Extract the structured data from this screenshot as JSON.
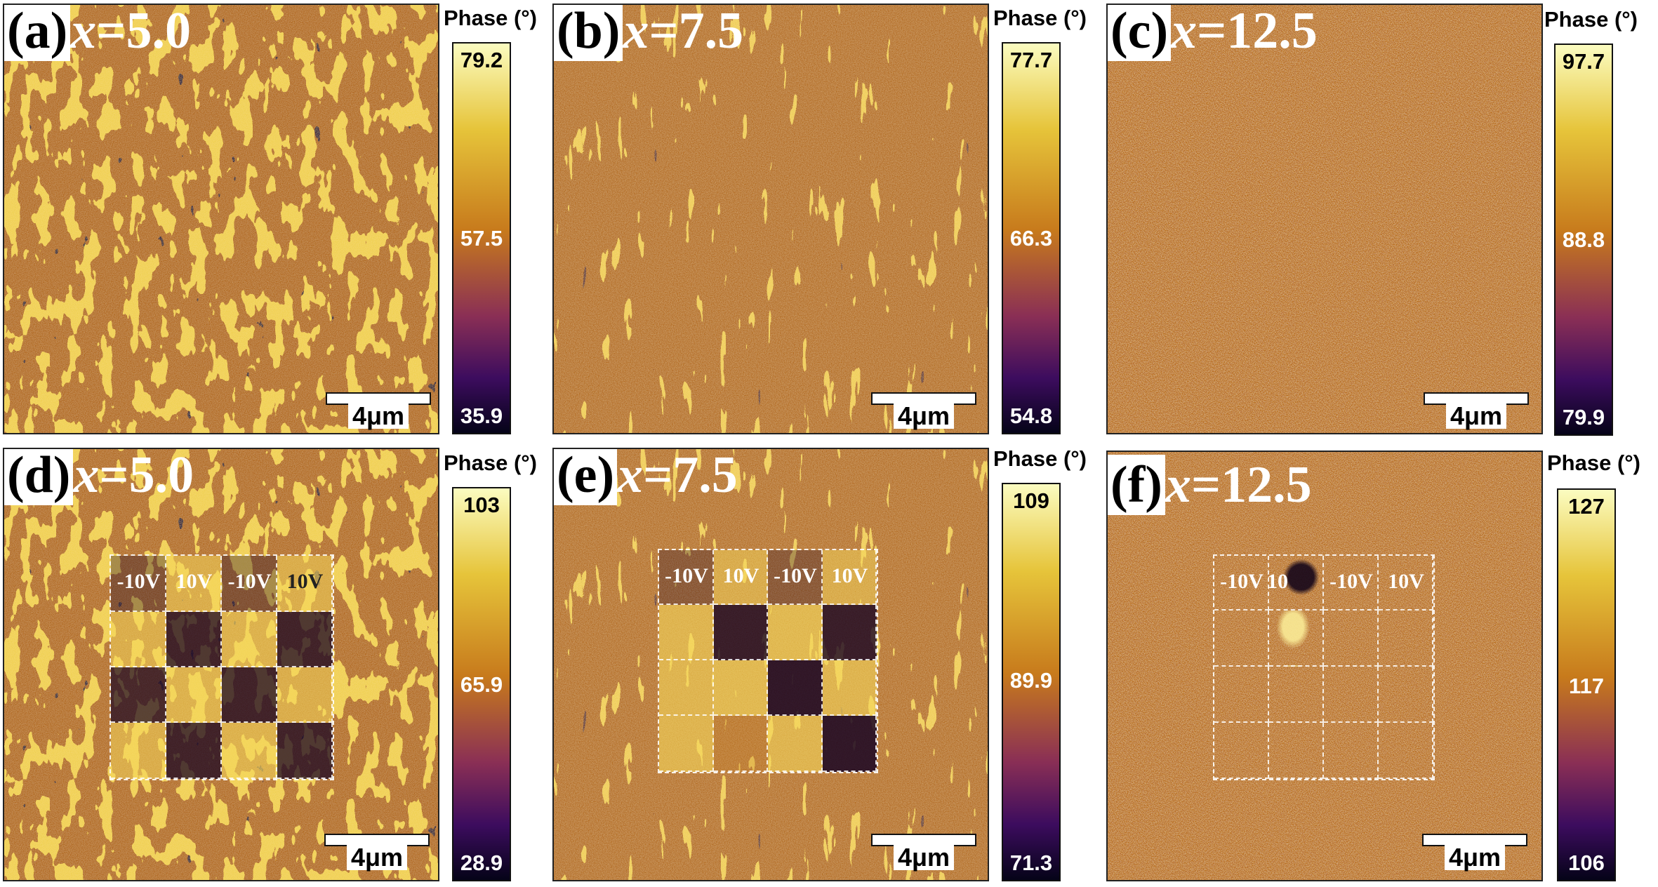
{
  "colorbar_title": "Phase (°)",
  "panels": [
    {
      "letter": "(a)",
      "xvar": "x",
      "value": "=5.0",
      "scale": "4μm",
      "cb_max": "79.2",
      "cb_mid": "57.5",
      "cb_min": "35.9",
      "voltages": []
    },
    {
      "letter": "(b)",
      "xvar": "x",
      "value": "=7.5",
      "scale": "4μm",
      "cb_max": "77.7",
      "cb_mid": "66.3",
      "cb_min": "54.8",
      "voltages": []
    },
    {
      "letter": "(c)",
      "xvar": "x",
      "value": "=12.5",
      "scale": "4μm",
      "cb_max": "97.7",
      "cb_mid": "88.8",
      "cb_min": "79.9",
      "voltages": []
    },
    {
      "letter": "(d)",
      "xvar": "x",
      "value": "=5.0",
      "scale": "4μm",
      "cb_max": "103",
      "cb_mid": "65.9",
      "cb_min": "28.9",
      "voltages": [
        "-10V",
        "10V",
        "-10V",
        "10V"
      ]
    },
    {
      "letter": "(e)",
      "xvar": "x",
      "value": "=7.5",
      "scale": "4μm",
      "cb_max": "109",
      "cb_mid": "89.9",
      "cb_min": "71.3",
      "voltages": [
        "-10V",
        "10V",
        "-10V",
        "10V"
      ]
    },
    {
      "letter": "(f)",
      "xvar": "x",
      "value": "=12.5",
      "scale": "4μm",
      "cb_max": "127",
      "cb_mid": "117",
      "cb_min": "106",
      "voltages": [
        "-10V",
        "10",
        "-10V",
        "10V"
      ]
    }
  ],
  "colors": {
    "colormap_top": "#fbfcc0",
    "colormap_upper": "#e6c43a",
    "colormap_middle": "#c77a1c",
    "colormap_lower": "#8a2f55",
    "colormap_low": "#3c0c5e",
    "colormap_bottom": "#050318",
    "image_base": "#b87214"
  }
}
